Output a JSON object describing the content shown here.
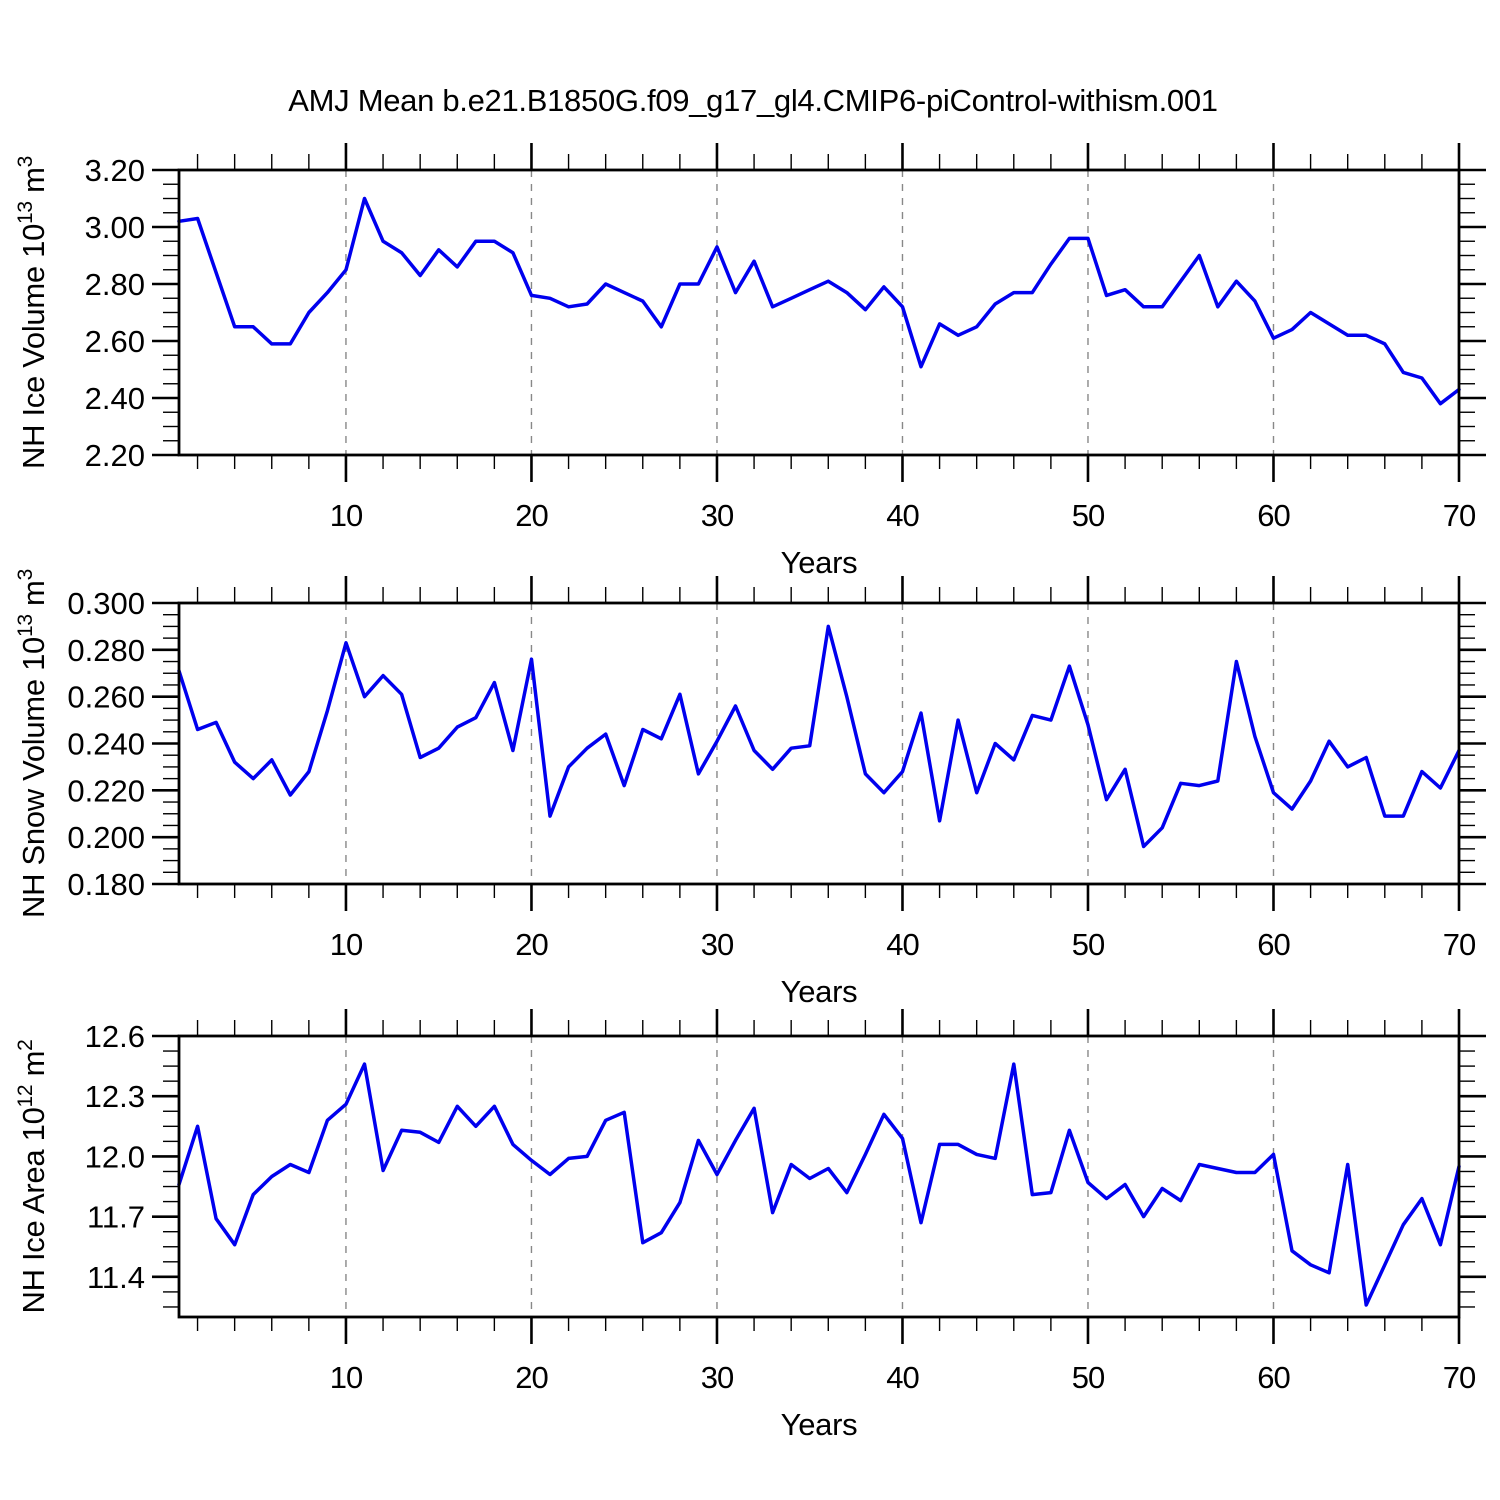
{
  "title": "AMJ Mean b.e21.B1850G.f09_g17_gl4.CMIP6-piControl-withism.001",
  "colors": {
    "line": "#0000ee",
    "axis": "#000000",
    "grid": "#888888",
    "text": "#000000"
  },
  "x_axis": {
    "label": "Years",
    "xticks": [
      10,
      20,
      30,
      40,
      50,
      60,
      70
    ],
    "xtick_labels": [
      "10",
      "20",
      "30",
      "40",
      "50",
      "60",
      "70"
    ],
    "grid_x": [
      10,
      20,
      30,
      40,
      50,
      60
    ],
    "xminor_step": 2,
    "x_range": [
      1,
      70
    ]
  },
  "years": [
    1,
    2,
    3,
    4,
    5,
    6,
    7,
    8,
    9,
    10,
    11,
    12,
    13,
    14,
    15,
    16,
    17,
    18,
    19,
    20,
    21,
    22,
    23,
    24,
    25,
    26,
    27,
    28,
    29,
    30,
    31,
    32,
    33,
    34,
    35,
    36,
    37,
    38,
    39,
    40,
    41,
    42,
    43,
    44,
    45,
    46,
    47,
    48,
    49,
    50,
    51,
    52,
    53,
    54,
    55,
    56,
    57,
    58,
    59,
    60,
    61,
    62,
    63,
    64,
    65,
    66,
    67,
    68,
    69,
    70
  ],
  "chart_data": [
    {
      "type": "line",
      "id": "nh-ice-volume",
      "ylabel": "NH Ice Volume 10^13 m^3",
      "xlabel": "Years",
      "ylim": [
        2.2,
        3.2
      ],
      "yticks": [
        2.2,
        2.4,
        2.6,
        2.8,
        3.0,
        3.2
      ],
      "ytick_labels": [
        "2.20",
        "2.40",
        "2.60",
        "2.80",
        "3.00",
        "3.20"
      ],
      "yminor_step": 0.05,
      "values": [
        3.02,
        3.03,
        2.84,
        2.65,
        2.65,
        2.59,
        2.59,
        2.7,
        2.77,
        2.85,
        3.1,
        2.95,
        2.91,
        2.83,
        2.92,
        2.86,
        2.95,
        2.95,
        2.91,
        2.76,
        2.75,
        2.72,
        2.73,
        2.8,
        2.77,
        2.74,
        2.65,
        2.8,
        2.8,
        2.93,
        2.77,
        2.88,
        2.72,
        2.75,
        2.78,
        2.81,
        2.77,
        2.71,
        2.79,
        2.72,
        2.51,
        2.66,
        2.62,
        2.65,
        2.73,
        2.77,
        2.77,
        2.87,
        2.96,
        2.96,
        2.76,
        2.78,
        2.72,
        2.72,
        2.81,
        2.9,
        2.72,
        2.81,
        2.74,
        2.61,
        2.64,
        2.7,
        2.66,
        2.62,
        2.62,
        2.59,
        2.49,
        2.47,
        2.38,
        2.43
      ]
    },
    {
      "type": "line",
      "id": "nh-snow-volume",
      "ylabel": "NH Snow Volume 10^13 m^3",
      "xlabel": "Years",
      "ylim": [
        0.18,
        0.3
      ],
      "yticks": [
        0.18,
        0.2,
        0.22,
        0.24,
        0.26,
        0.28,
        0.3
      ],
      "ytick_labels": [
        "0.180",
        "0.200",
        "0.220",
        "0.240",
        "0.260",
        "0.280",
        "0.300"
      ],
      "yminor_step": 0.005,
      "values": [
        0.271,
        0.246,
        0.249,
        0.232,
        0.225,
        0.233,
        0.218,
        0.228,
        0.254,
        0.283,
        0.26,
        0.269,
        0.261,
        0.234,
        0.238,
        0.247,
        0.251,
        0.266,
        0.237,
        0.276,
        0.209,
        0.23,
        0.238,
        0.244,
        0.222,
        0.246,
        0.242,
        0.261,
        0.227,
        0.241,
        0.256,
        0.237,
        0.229,
        0.238,
        0.239,
        0.29,
        0.26,
        0.227,
        0.219,
        0.228,
        0.253,
        0.207,
        0.25,
        0.219,
        0.24,
        0.233,
        0.252,
        0.25,
        0.273,
        0.248,
        0.216,
        0.229,
        0.196,
        0.204,
        0.223,
        0.222,
        0.224,
        0.275,
        0.243,
        0.219,
        0.212,
        0.224,
        0.241,
        0.23,
        0.234,
        0.209,
        0.209,
        0.228,
        0.221,
        0.237
      ]
    },
    {
      "type": "line",
      "id": "nh-ice-area",
      "ylabel": "NH Ice Area 10^12 m^2",
      "xlabel": "Years",
      "ylim": [
        11.2,
        12.6
      ],
      "yticks": [
        11.4,
        11.7,
        12.0,
        12.3,
        12.6
      ],
      "ytick_labels": [
        "11.4",
        "11.7",
        "12.0",
        "12.3",
        "12.6"
      ],
      "yminor_step": 0.075,
      "values": [
        11.86,
        12.15,
        11.69,
        11.56,
        11.81,
        11.9,
        11.96,
        11.92,
        12.18,
        12.26,
        12.46,
        11.93,
        12.13,
        12.12,
        12.07,
        12.25,
        12.15,
        12.25,
        12.06,
        11.98,
        11.91,
        11.99,
        12.0,
        12.18,
        12.22,
        11.57,
        11.62,
        11.77,
        12.08,
        11.91,
        12.08,
        12.24,
        11.72,
        11.96,
        11.89,
        11.94,
        11.82,
        12.01,
        12.21,
        12.09,
        11.67,
        12.06,
        12.06,
        12.01,
        11.99,
        12.46,
        11.81,
        11.82,
        12.13,
        11.87,
        11.79,
        11.86,
        11.7,
        11.84,
        11.78,
        11.96,
        11.94,
        11.92,
        11.92,
        12.01,
        11.53,
        11.46,
        11.42,
        11.96,
        11.26,
        11.46,
        11.66,
        11.79,
        11.56,
        11.95
      ]
    }
  ]
}
